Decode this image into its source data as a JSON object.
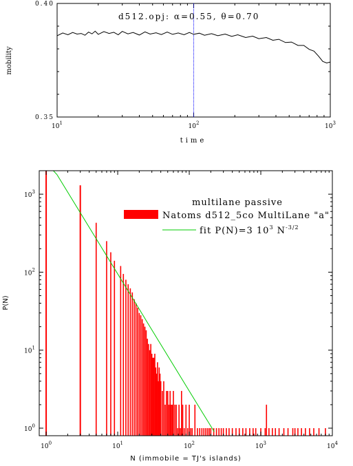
{
  "chart_data": [
    {
      "type": "line",
      "annotation": "d512.opj:   α=0.55,  θ=0.70",
      "xlabel": "time",
      "ylabel": "mobility",
      "xscale": "log",
      "xlim": [
        10,
        1000
      ],
      "ylim": [
        0.35,
        0.4
      ],
      "xticks": [
        {
          "value": 10,
          "base": "10",
          "exp": "1"
        },
        {
          "value": 100,
          "base": "10",
          "exp": "2"
        },
        {
          "value": 1000,
          "base": "10",
          "exp": "3"
        }
      ],
      "yticks": [
        {
          "value": 0.35,
          "label": "0.35"
        },
        {
          "value": 0.4,
          "label": "0.40"
        }
      ],
      "reference_line": {
        "x": 100,
        "color": "#0000ff",
        "style": "dotted"
      },
      "series": [
        {
          "color": "#000000",
          "x": [
            10,
            11,
            12,
            13,
            14,
            15,
            16,
            17,
            18,
            19,
            20,
            22,
            24,
            26,
            28,
            30,
            33,
            36,
            40,
            44,
            48,
            53,
            58,
            64,
            70,
            77,
            85,
            93,
            100,
            110,
            120,
            135,
            150,
            170,
            190,
            210,
            240,
            270,
            300,
            340,
            380,
            420,
            470,
            520,
            580,
            640,
            700,
            760,
            820,
            880,
            940,
            1000
          ],
          "y": [
            0.3858,
            0.387,
            0.3862,
            0.3872,
            0.3865,
            0.3868,
            0.386,
            0.3874,
            0.3866,
            0.3878,
            0.3864,
            0.3876,
            0.3868,
            0.3873,
            0.3862,
            0.3877,
            0.3866,
            0.3872,
            0.3861,
            0.3875,
            0.3865,
            0.3871,
            0.3863,
            0.3874,
            0.3864,
            0.387,
            0.3862,
            0.3872,
            0.3864,
            0.3869,
            0.386,
            0.3867,
            0.3858,
            0.3865,
            0.3855,
            0.3862,
            0.385,
            0.3856,
            0.3845,
            0.385,
            0.3838,
            0.3842,
            0.3828,
            0.383,
            0.3815,
            0.3815,
            0.3798,
            0.379,
            0.3768,
            0.3745,
            0.3738,
            0.3742
          ]
        }
      ]
    },
    {
      "type": "bar",
      "xlabel": "N (immobile = TJ's islands)",
      "ylabel": "P(N)",
      "xscale": "log",
      "yscale": "log",
      "xlim": [
        0.8,
        10000
      ],
      "ylim": [
        0.8,
        2000
      ],
      "xticks": [
        {
          "value": 1,
          "base": "10",
          "exp": "0"
        },
        {
          "value": 10,
          "base": "10",
          "exp": "1"
        },
        {
          "value": 100,
          "base": "10",
          "exp": "2"
        },
        {
          "value": 1000,
          "base": "10",
          "exp": "3"
        },
        {
          "value": 10000,
          "base": "10",
          "exp": "4"
        }
      ],
      "yticks": [
        {
          "value": 1,
          "base": "10",
          "exp": "0"
        },
        {
          "value": 10,
          "base": "10",
          "exp": "1"
        },
        {
          "value": 100,
          "base": "10",
          "exp": "2"
        },
        {
          "value": 1000,
          "base": "10",
          "exp": "3"
        }
      ],
      "legend": {
        "title": "multilane passive",
        "entries": [
          {
            "label": "Natoms d512_5co MultiLane \"a\"",
            "color": "#ff0000",
            "kind": "bar"
          },
          {
            "label": "fit P(N)=3 10",
            "label_sup": "3",
            "label_tail": " N",
            "label_sup2": "-3/2",
            "color": "#00cc00",
            "kind": "line"
          }
        ],
        "placement": "top-right"
      },
      "fit": {
        "amplitude": 3000,
        "exponent": -1.5,
        "color": "#00cc00"
      },
      "series": [
        {
          "name": "Natoms d512_5co MultiLane \"a\"",
          "color": "#ff0000",
          "x": [
            1,
            3,
            5,
            7,
            8,
            9,
            11,
            12,
            13,
            14,
            15,
            16,
            17,
            18,
            19,
            20,
            21,
            22,
            23,
            24,
            25,
            26,
            27,
            28,
            29,
            30,
            31,
            32,
            33,
            34,
            35,
            36,
            37,
            38,
            39,
            40,
            42,
            44,
            46,
            48,
            50,
            52,
            54,
            56,
            58,
            60,
            63,
            66,
            69,
            72,
            75,
            78,
            81,
            85,
            90,
            95,
            100,
            105,
            110,
            120,
            130,
            140,
            150,
            160,
            170,
            180,
            190,
            200,
            220,
            240,
            260,
            280,
            300,
            330,
            360,
            400,
            450,
            500,
            560,
            620,
            700,
            780,
            850,
            1000,
            1150,
            1200,
            1300,
            1450,
            1600,
            1800,
            2100,
            2400,
            2800,
            3000,
            3300,
            3700,
            4200,
            4800,
            5500,
            6500,
            8000
          ],
          "values": [
            2000,
            1300,
            430,
            250,
            180,
            140,
            120,
            95,
            80,
            70,
            62,
            55,
            45,
            40,
            35,
            30,
            28,
            25,
            22,
            20,
            18,
            14,
            12,
            10,
            12,
            9,
            8,
            8,
            9,
            6,
            5,
            7,
            4,
            6,
            5,
            4,
            3,
            4,
            2,
            3,
            3,
            2,
            3,
            2,
            2,
            3,
            2,
            2,
            1,
            2,
            1,
            3,
            2,
            1,
            2,
            1,
            2,
            1,
            1,
            2,
            1,
            1,
            1,
            1,
            1,
            1,
            1,
            1,
            1,
            1,
            1,
            1,
            1,
            1,
            1,
            1,
            1,
            1,
            1,
            1,
            1,
            1,
            1,
            1,
            1,
            2,
            1,
            1,
            1,
            1,
            1,
            1,
            1,
            1,
            1,
            1,
            1,
            1,
            1,
            1,
            1
          ]
        }
      ]
    }
  ]
}
